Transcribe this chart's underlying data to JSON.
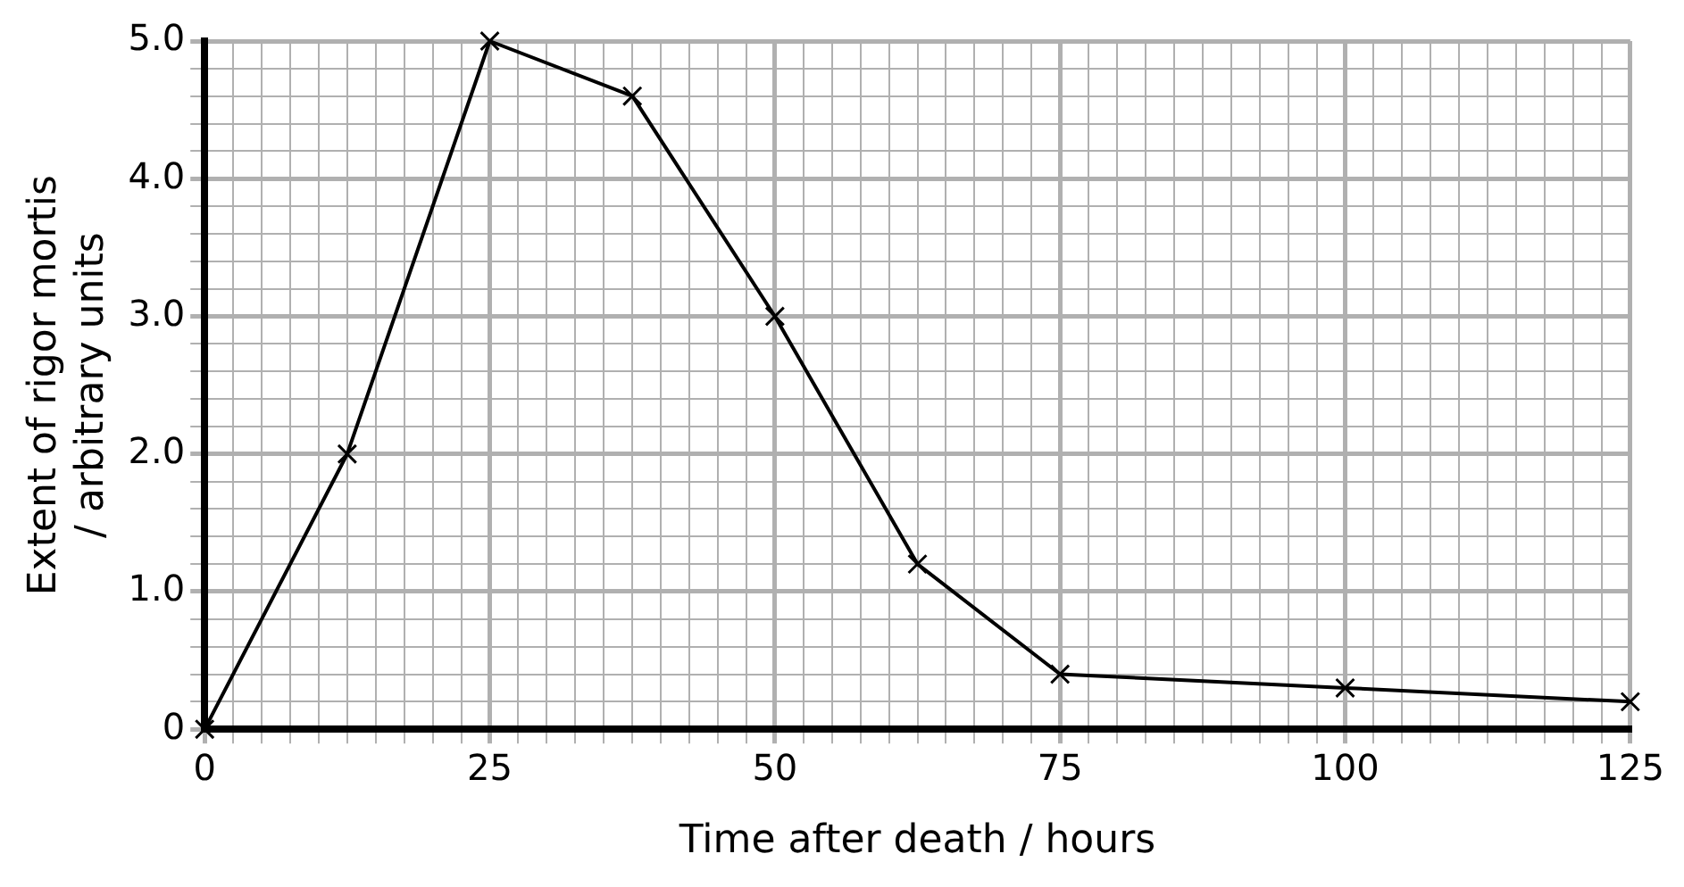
{
  "chart_data": {
    "type": "line",
    "xlabel": "Time after death / hours",
    "ylabel": "Extent of rigor mortis / arbitrary units",
    "x": [
      0,
      12.5,
      25,
      37.5,
      50,
      62.5,
      75,
      100,
      125
    ],
    "series": [
      {
        "color": "#000000",
        "values": [
          0,
          2.0,
          5.0,
          4.6,
          3.0,
          1.2,
          0.4,
          0.3,
          0.2
        ]
      }
    ],
    "xlim": [
      0,
      125
    ],
    "ylim": [
      0,
      5
    ],
    "xticks": [
      0,
      {
        "value": 2.5,
        "label": null
      },
      {
        "value": 5,
        "label": null
      },
      {
        "value": 7.5,
        "label": null
      },
      {
        "value": 10,
        "label": null
      },
      {
        "value": 12.5,
        "label": null
      },
      {
        "value": 15,
        "label": null
      },
      {
        "value": 17.5,
        "label": null
      },
      {
        "value": 20,
        "label": null
      },
      {
        "value": 22.5,
        "label": null
      },
      25,
      {
        "value": 27.5,
        "label": null
      },
      {
        "value": 30,
        "label": null
      },
      {
        "value": 32.5,
        "label": null
      },
      {
        "value": 35,
        "label": null
      },
      {
        "value": 37.5,
        "label": null
      },
      {
        "value": 40,
        "label": null
      },
      {
        "value": 42.5,
        "label": null
      },
      {
        "value": 45,
        "label": null
      },
      {
        "value": 47.5,
        "label": null
      },
      50,
      {
        "value": 52.5,
        "label": null
      },
      {
        "value": 55,
        "label": null
      },
      {
        "value": 57.5,
        "label": null
      },
      {
        "value": 60,
        "label": null
      },
      {
        "value": 62.5,
        "label": null
      },
      {
        "value": 65,
        "label": null
      },
      {
        "value": 67.5,
        "label": null
      },
      {
        "value": 70,
        "label": null
      },
      {
        "value": 72.5,
        "label": null
      },
      75,
      {
        "value": 77.5,
        "label": null
      },
      {
        "value": 80,
        "label": null
      },
      {
        "value": 82.5,
        "label": null
      },
      {
        "value": 85,
        "label": null
      },
      {
        "value": 87.5,
        "label": null
      },
      {
        "value": 90,
        "label": null
      },
      {
        "value": 92.5,
        "label": null
      },
      {
        "value": 95,
        "label": null
      },
      {
        "value": 97.5,
        "label": null
      },
      100,
      {
        "value": 102.5,
        "label": null
      },
      {
        "value": 105,
        "label": null
      },
      {
        "value": 107.5,
        "label": null
      },
      {
        "value": 110,
        "label": null
      },
      {
        "value": 112.5,
        "label": null
      },
      {
        "value": 115,
        "label": null
      },
      {
        "value": 117.5,
        "label": null
      },
      {
        "value": 120,
        "label": null
      },
      {
        "value": 122.5,
        "label": null
      },
      125
    ],
    "yticks": [
      0,
      {
        "value": 0.2,
        "label": null
      },
      {
        "value": 0.4,
        "label": null
      },
      {
        "value": 0.6,
        "label": null
      },
      {
        "value": 0.8,
        "label": null
      },
      {
        "value": 1,
        "label": "1.0"
      },
      {
        "value": 1.2,
        "label": null
      },
      {
        "value": 1.4,
        "label": null
      },
      {
        "value": 1.6,
        "label": null
      },
      {
        "value": 1.8,
        "label": null
      },
      {
        "value": 2,
        "label": "2.0"
      },
      {
        "value": 2.2,
        "label": null
      },
      {
        "value": 2.4,
        "label": null
      },
      {
        "value": 2.6,
        "label": null
      },
      {
        "value": 2.8,
        "label": null
      },
      {
        "value": 3,
        "label": "3.0"
      },
      {
        "value": 3.2,
        "label": null
      },
      {
        "value": 3.4,
        "label": null
      },
      {
        "value": 3.6,
        "label": null
      },
      {
        "value": 3.8,
        "label": null
      },
      {
        "value": 4,
        "label": "4.0"
      },
      {
        "value": 4.2,
        "label": null
      },
      {
        "value": 4.4,
        "label": null
      },
      {
        "value": 4.6,
        "label": null
      },
      {
        "value": 4.8,
        "label": null
      },
      {
        "value": 5,
        "label": "5.0"
      }
    ],
    "grid": true,
    "marker": "cross",
    "line_style": "solid",
    "legend": false
  }
}
